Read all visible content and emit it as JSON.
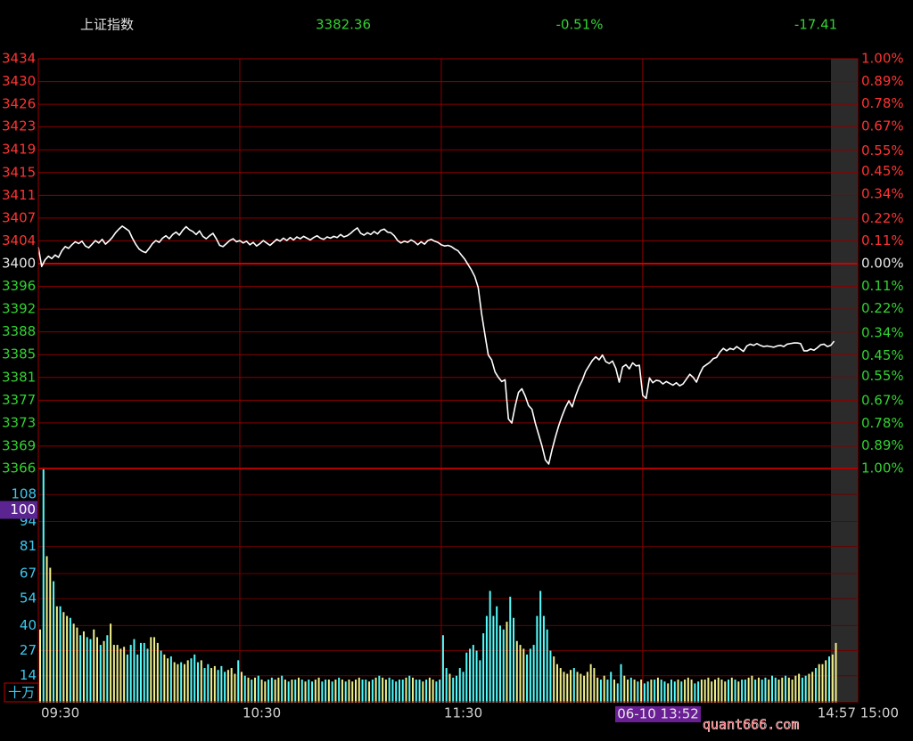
{
  "chart_data": [
    {
      "type": "line",
      "title": "上证指数",
      "quote": {
        "price": 3382.36,
        "change_pct": "-0.51%",
        "change": -17.41
      },
      "categories": [
        "09:30",
        null,
        null,
        null,
        null,
        null,
        null,
        null,
        null,
        null,
        null,
        null,
        null,
        null,
        null,
        null,
        null,
        null,
        null,
        null,
        null,
        null,
        null,
        null,
        null,
        null,
        null,
        null,
        null,
        null,
        null,
        null,
        null,
        null,
        null,
        null,
        null,
        null,
        null,
        null,
        null,
        null,
        null,
        null,
        null,
        null,
        null,
        null,
        null,
        null,
        null,
        null,
        null,
        null,
        null,
        null,
        null,
        null,
        null,
        null,
        "10:30",
        null,
        null,
        null,
        null,
        null,
        null,
        null,
        null,
        null,
        null,
        null,
        null,
        null,
        null,
        null,
        null,
        null,
        null,
        null,
        null,
        null,
        null,
        null,
        null,
        null,
        null,
        null,
        null,
        null,
        null,
        null,
        null,
        null,
        null,
        null,
        null,
        null,
        null,
        null,
        null,
        null,
        null,
        null,
        null,
        null,
        null,
        null,
        null,
        null,
        null,
        null,
        null,
        null,
        null,
        null,
        null,
        null,
        null,
        null,
        "11:30",
        null,
        null,
        null,
        null,
        null,
        null,
        null,
        null,
        null,
        null,
        null,
        null,
        null,
        null,
        null,
        null,
        null,
        null,
        null,
        null,
        null,
        null,
        null,
        null,
        null,
        null,
        null,
        null,
        null,
        null,
        null,
        null,
        null,
        null,
        null,
        null,
        null,
        null,
        null,
        null,
        null,
        null,
        null,
        null,
        null,
        null,
        null,
        null,
        null,
        null,
        null,
        null,
        null,
        null,
        null,
        null,
        null,
        null,
        null,
        null,
        null,
        null,
        null,
        null,
        null,
        null,
        null,
        null,
        null,
        null,
        null,
        null,
        null,
        null,
        null,
        null,
        null,
        null,
        null,
        null,
        null,
        null,
        null,
        null,
        null,
        null,
        null,
        null,
        null,
        null,
        null,
        null,
        null,
        null,
        null,
        null,
        null,
        null,
        null,
        null,
        null,
        null,
        null,
        null,
        null,
        null,
        null,
        null,
        null,
        null,
        null,
        null,
        null,
        null,
        null,
        null,
        "14:57"
      ],
      "x_end_label": "15:00",
      "values": [
        3402.5,
        3399.3,
        3400.4,
        3401.0,
        3400.6,
        3401.2,
        3400.8,
        3401.9,
        3402.6,
        3402.3,
        3402.9,
        3403.4,
        3403.1,
        3403.5,
        3402.7,
        3402.4,
        3403.0,
        3403.6,
        3403.2,
        3403.8,
        3403.0,
        3403.5,
        3404.1,
        3404.9,
        3405.5,
        3406.0,
        3405.6,
        3405.2,
        3404.0,
        3403.0,
        3402.2,
        3401.8,
        3401.6,
        3402.3,
        3403.1,
        3403.6,
        3403.3,
        3404.0,
        3404.4,
        3403.9,
        3404.6,
        3405.0,
        3404.5,
        3405.3,
        3405.9,
        3405.4,
        3405.1,
        3404.6,
        3405.2,
        3404.3,
        3403.9,
        3404.4,
        3404.8,
        3403.9,
        3402.8,
        3402.6,
        3403.1,
        3403.6,
        3403.9,
        3403.4,
        3403.6,
        3403.2,
        3403.5,
        3402.9,
        3403.3,
        3402.7,
        3403.1,
        3403.6,
        3403.2,
        3402.8,
        3403.3,
        3403.8,
        3403.5,
        3404.0,
        3403.6,
        3404.1,
        3403.7,
        3404.2,
        3403.9,
        3404.3,
        3404.0,
        3403.7,
        3404.1,
        3404.4,
        3404.0,
        3403.8,
        3404.2,
        3404.0,
        3404.3,
        3404.1,
        3404.6,
        3404.2,
        3404.4,
        3404.8,
        3405.3,
        3405.7,
        3404.8,
        3404.5,
        3404.9,
        3404.6,
        3405.1,
        3404.7,
        3405.3,
        3405.5,
        3405.0,
        3404.9,
        3404.4,
        3403.6,
        3403.2,
        3403.5,
        3403.3,
        3403.7,
        3403.4,
        3402.9,
        3403.4,
        3403.0,
        3403.6,
        3403.8,
        3403.5,
        3403.3,
        3402.9,
        3402.7,
        3402.8,
        3402.6,
        3402.2,
        3401.9,
        3401.2,
        3400.5,
        3399.6,
        3398.7,
        3397.6,
        3395.8,
        3391.5,
        3388.0,
        3384.6,
        3383.8,
        3381.8,
        3380.9,
        3380.2,
        3380.5,
        3374.0,
        3373.3,
        3376.1,
        3378.4,
        3379.0,
        3377.8,
        3376.2,
        3375.6,
        3373.3,
        3371.4,
        3369.5,
        3367.2,
        3366.5,
        3368.9,
        3371.0,
        3372.9,
        3374.5,
        3375.9,
        3377.0,
        3376.0,
        3377.8,
        3379.3,
        3380.4,
        3381.9,
        3382.8,
        3383.7,
        3384.3,
        3383.8,
        3384.6,
        3383.5,
        3383.2,
        3383.6,
        3382.36,
        3380.1,
        3382.6,
        3383.0,
        3382.3,
        3383.3,
        3382.8,
        3382.9,
        3377.9,
        3377.4,
        3380.8,
        3380.0,
        3380.4,
        3380.3,
        3379.8,
        3380.2,
        3379.9,
        3379.6,
        3380.0,
        3379.5,
        3379.8,
        3380.6,
        3381.4,
        3380.9,
        3380.1,
        3381.5,
        3382.6,
        3383.0,
        3383.4,
        3384.0,
        3384.2,
        3385.1,
        3385.7,
        3385.3,
        3385.7,
        3385.5,
        3386.0,
        3385.6,
        3385.2,
        3386.1,
        3386.4,
        3386.2,
        3386.5,
        3386.2,
        3386.0,
        3386.1,
        3386.0,
        3385.9,
        3386.1,
        3386.2,
        3386.0,
        3386.4,
        3386.5,
        3386.6,
        3386.6,
        3386.5,
        3385.3,
        3385.3,
        3385.6,
        3385.4,
        3385.8,
        3386.3,
        3386.4,
        3386.0,
        3386.2,
        3386.9
      ],
      "color": "#ffffff",
      "ylim": [
        3365.77,
        3433.77
      ],
      "yticks": [
        {
          "value": 3433.77,
          "label": "3434"
        },
        {
          "value": 3429.99,
          "label": "3430"
        },
        {
          "value": 3426.21,
          "label": "3426"
        },
        {
          "value": 3422.5,
          "label": "3423"
        },
        {
          "value": 3418.66,
          "label": "3419"
        },
        {
          "value": 3414.88,
          "label": "3415"
        },
        {
          "value": 3411.1,
          "label": "3411"
        },
        {
          "value": 3407.33,
          "label": "3407"
        },
        {
          "value": 3403.55,
          "label": "3404"
        },
        {
          "value": 3399.77,
          "label": "3400"
        },
        {
          "value": 3395.99,
          "label": "3396"
        },
        {
          "value": 3392.21,
          "label": "3392"
        },
        {
          "value": 3388.44,
          "label": "3388"
        },
        {
          "value": 3384.66,
          "label": "3385"
        },
        {
          "value": 3380.88,
          "label": "3381"
        },
        {
          "value": 3377.1,
          "label": "3377"
        },
        {
          "value": 3373.33,
          "label": "3373"
        },
        {
          "value": 3369.49,
          "label": "3369"
        },
        {
          "value": 3365.77,
          "label": "3366"
        }
      ],
      "y2lim": [
        -1,
        1
      ],
      "y2ticks": [
        {
          "value": 1,
          "label": "1.00%"
        },
        {
          "value": 0.89,
          "label": "0.89%"
        },
        {
          "value": 0.78,
          "label": "0.78%"
        },
        {
          "value": 0.67,
          "label": "0.67%"
        },
        {
          "value": 0.55,
          "label": "0.55%"
        },
        {
          "value": 0.45,
          "label": "0.45%"
        },
        {
          "value": 0.34,
          "label": "0.34%"
        },
        {
          "value": 0.22,
          "label": "0.22%"
        },
        {
          "value": 0.11,
          "label": "0.11%"
        },
        {
          "value": 0,
          "label": "0.00%"
        },
        {
          "value": -0.11,
          "label": "0.11%"
        },
        {
          "value": -0.22,
          "label": "0.22%"
        },
        {
          "value": -0.34,
          "label": "0.34%"
        },
        {
          "value": -0.45,
          "label": "0.45%"
        },
        {
          "value": -0.55,
          "label": "0.55%"
        },
        {
          "value": -0.67,
          "label": "0.67%"
        },
        {
          "value": -0.78,
          "label": "0.78%"
        },
        {
          "value": -0.89,
          "label": "0.89%"
        },
        {
          "value": -1,
          "label": "1.00%"
        }
      ],
      "up_color": "#ff3232",
      "down_color": "#32d232",
      "flat_color": "#e6e6e6",
      "grid": true
    },
    {
      "type": "bar",
      "unit": "十万",
      "values": [
        38,
        122,
        76,
        70,
        63,
        50,
        50,
        47,
        45,
        44,
        41,
        39,
        35,
        37,
        34,
        33,
        38,
        34,
        30,
        32,
        35,
        41,
        30,
        30,
        28,
        29,
        25,
        30,
        33,
        25,
        31,
        31,
        28,
        34,
        34,
        31,
        27,
        25,
        23,
        24,
        21,
        20,
        21,
        20,
        22,
        23,
        25,
        21,
        22,
        18,
        20,
        18,
        19,
        17,
        19,
        16,
        17,
        18,
        15,
        22,
        16,
        14,
        13,
        12,
        13,
        14,
        12,
        11,
        12,
        13,
        12,
        13,
        14,
        12,
        11,
        12,
        12,
        13,
        12,
        11,
        12,
        11,
        12,
        13,
        11,
        12,
        12,
        11,
        12,
        13,
        12,
        11,
        12,
        11,
        12,
        13,
        12,
        12,
        11,
        12,
        13,
        14,
        13,
        12,
        13,
        12,
        11,
        12,
        12,
        13,
        14,
        13,
        12,
        12,
        11,
        12,
        13,
        12,
        11,
        12,
        35,
        18,
        15,
        13,
        14,
        18,
        16,
        26,
        28,
        30,
        27,
        22,
        36,
        45,
        58,
        45,
        50,
        40,
        38,
        42,
        55,
        44,
        32,
        30,
        28,
        25,
        28,
        30,
        45,
        58,
        45,
        38,
        27,
        24,
        20,
        18,
        16,
        15,
        17,
        18,
        16,
        15,
        14,
        16,
        20,
        18,
        13,
        12,
        14,
        12,
        16,
        12,
        10,
        20,
        14,
        12,
        13,
        12,
        11,
        12,
        10,
        11,
        12,
        12,
        13,
        12,
        11,
        10,
        12,
        11,
        12,
        11,
        12,
        13,
        12,
        10,
        11,
        12,
        12,
        13,
        11,
        12,
        13,
        12,
        11,
        12,
        13,
        12,
        11,
        12,
        12,
        13,
        14,
        12,
        13,
        12,
        13,
        12,
        14,
        13,
        12,
        13,
        14,
        13,
        12,
        14,
        15,
        13,
        14,
        15,
        16,
        18,
        20,
        20,
        22,
        24,
        25,
        31
      ],
      "up_color": "#f0f08c",
      "down_color": "#54fcfc",
      "ylim": [
        0,
        121.5
      ],
      "yticks": [
        14,
        27,
        40,
        54,
        67,
        81,
        94,
        108
      ],
      "tick_color": "#3cc8f0",
      "grid": true,
      "cursor": {
        "time": "06-10 13:52",
        "value": 100
      }
    },
    {
      "type": "watermark",
      "text": "quant666.com"
    }
  ]
}
